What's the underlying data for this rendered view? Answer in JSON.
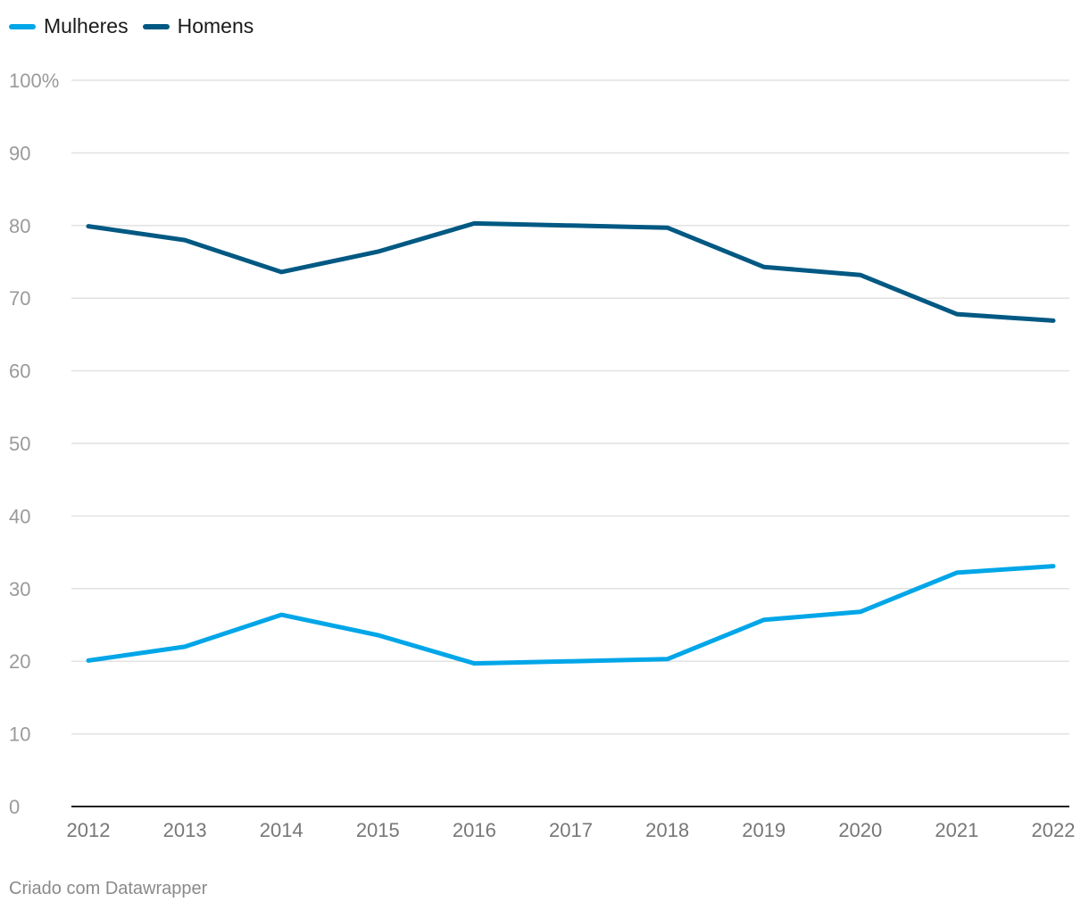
{
  "chart_data": {
    "type": "line",
    "x": [
      2012,
      2013,
      2014,
      2015,
      2016,
      2017,
      2018,
      2019,
      2020,
      2021,
      2022
    ],
    "series": [
      {
        "name": "Mulheres",
        "color": "#00a6e8",
        "values": [
          20.1,
          22.0,
          26.4,
          23.6,
          19.7,
          20.0,
          20.3,
          25.7,
          26.8,
          32.2,
          33.1
        ]
      },
      {
        "name": "Homens",
        "color": "#005983",
        "values": [
          79.9,
          78.0,
          73.6,
          76.4,
          80.3,
          80.0,
          79.7,
          74.3,
          73.2,
          67.8,
          66.9
        ]
      }
    ],
    "ylim": [
      0,
      100
    ],
    "yticks": [
      0,
      10,
      20,
      30,
      40,
      50,
      60,
      70,
      80,
      90,
      100
    ],
    "ytick_labels": [
      "0",
      "10",
      "20",
      "30",
      "40",
      "50",
      "60",
      "70",
      "80",
      "90",
      "100%"
    ],
    "grid": true,
    "legend": "top-left"
  },
  "footer": "Criado com Datawrapper"
}
